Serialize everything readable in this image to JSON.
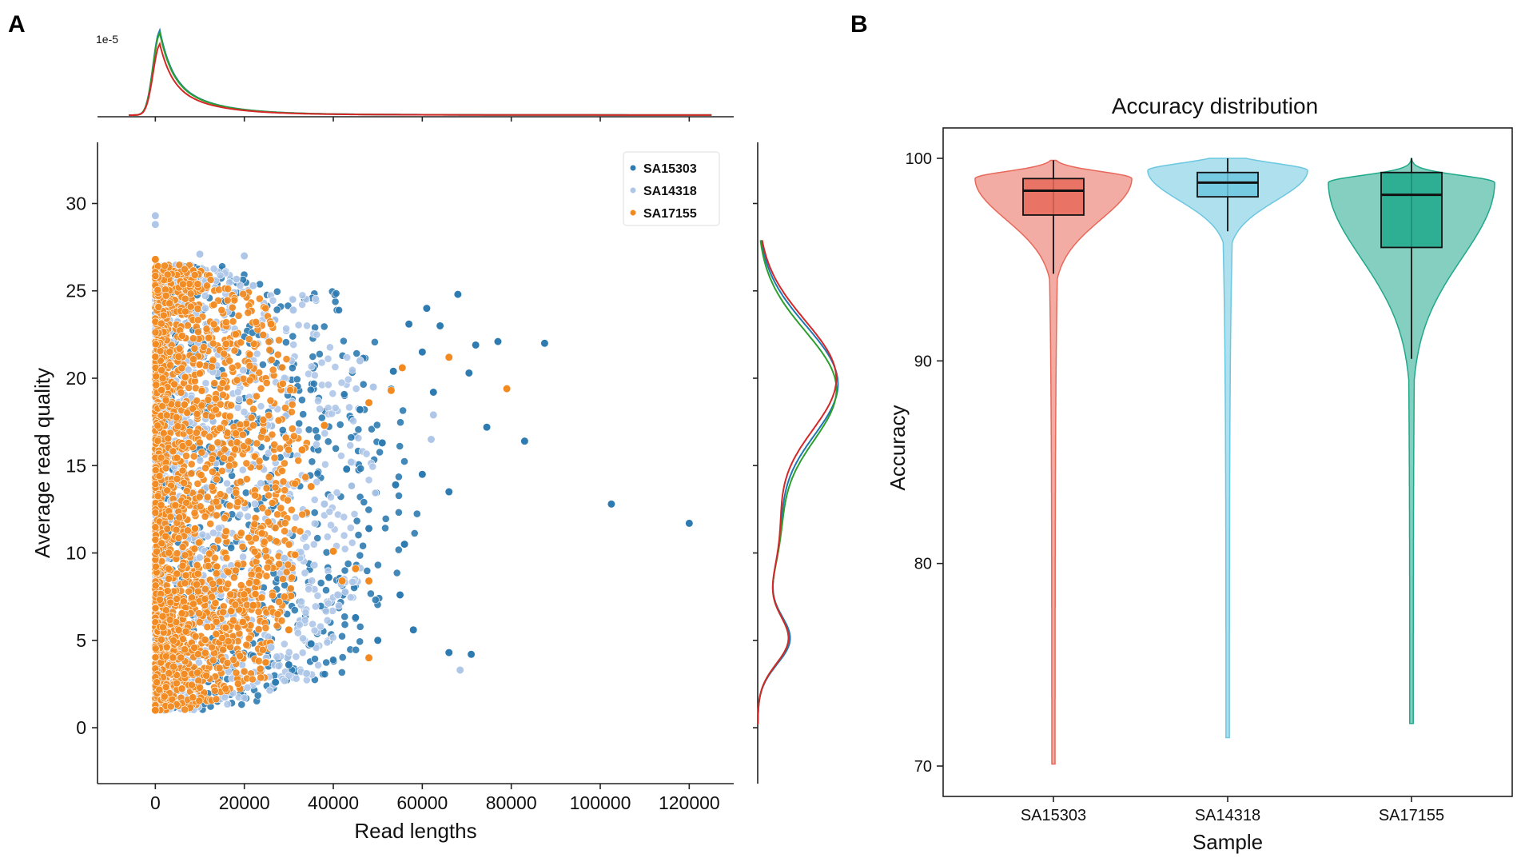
{
  "panel_labels": {
    "a": "A",
    "b": "B"
  },
  "colors": {
    "SA15303": "#2e7bb1",
    "SA14318": "#aec7e8",
    "SA17155": "#f28a1f",
    "kde_SA15303": "#1f77b4",
    "kde_SA14318": "#2ca02c",
    "kde_SA17155": "#d62728",
    "violin_SA15303": "#e8685a",
    "violin_SA14318": "#6cc7e0",
    "violin_SA17155": "#1fa88a"
  },
  "chart_data": [
    {
      "type": "scatter",
      "id": "scatter_read_quality",
      "xlabel": "Read lengths",
      "ylabel": "Average read quality",
      "xlim": [
        -13000,
        130000
      ],
      "ylim": [
        -3.2,
        33.5
      ],
      "xticks": [
        0,
        20000,
        40000,
        60000,
        80000,
        100000,
        120000
      ],
      "yticks": [
        0,
        5,
        10,
        15,
        20,
        25,
        30
      ],
      "legend": {
        "position": "top-right",
        "entries": [
          "SA15303",
          "SA14318",
          "SA17155"
        ]
      },
      "series": [
        {
          "name": "SA15303",
          "outliers": [
            [
              120000,
              11.7
            ],
            [
              102500,
              12.8
            ],
            [
              87500,
              22.0
            ],
            [
              83000,
              16.4
            ],
            [
              77000,
              22.1
            ],
            [
              74500,
              17.2
            ],
            [
              72000,
              21.9
            ],
            [
              70500,
              20.3
            ],
            [
              71000,
              4.2
            ],
            [
              68000,
              24.8
            ],
            [
              66000,
              13.5
            ],
            [
              66000,
              4.3
            ],
            [
              64000,
              23.0
            ],
            [
              62500,
              19.2
            ],
            [
              61000,
              24.0
            ],
            [
              60000,
              21.5
            ],
            [
              60000,
              14.5
            ],
            [
              58000,
              5.6
            ],
            [
              57000,
              23.1
            ],
            [
              56000,
              10.5
            ],
            [
              55000,
              7.6
            ],
            [
              54000,
              13.9
            ],
            [
              53500,
              20.4
            ],
            [
              51000,
              16.3
            ],
            [
              50000,
              5.0
            ],
            [
              48000,
              11.4
            ],
            [
              46000,
              18.2
            ],
            [
              45000,
              6.3
            ],
            [
              43000,
              14.8
            ],
            [
              39000,
              8.6
            ],
            [
              35000,
              4.8
            ],
            [
              30000,
              3.6
            ],
            [
              27000,
              2.6
            ]
          ]
        },
        {
          "name": "SA14318",
          "outliers": [
            [
              68500,
              3.3
            ],
            [
              62500,
              17.9
            ],
            [
              62000,
              16.5
            ],
            [
              49000,
              19.5
            ],
            [
              46000,
              21.0
            ],
            [
              44000,
              15.2
            ],
            [
              41000,
              7.6
            ],
            [
              38000,
              12.8
            ],
            [
              34000,
              3.1
            ],
            [
              31000,
              23.9
            ],
            [
              29000,
              9.7
            ],
            [
              26000,
              4.6
            ],
            [
              22000,
              25.3
            ],
            [
              20000,
              27.0
            ],
            [
              10000,
              27.1
            ],
            [
              0,
              29.3
            ],
            [
              0,
              28.8
            ]
          ]
        },
        {
          "name": "SA17155",
          "outliers": [
            [
              79000,
              19.4
            ],
            [
              66000,
              21.2
            ],
            [
              55500,
              20.6
            ],
            [
              53000,
              19.3
            ],
            [
              48000,
              18.6
            ],
            [
              48000,
              8.4
            ],
            [
              48000,
              4.0
            ],
            [
              45000,
              9.1
            ],
            [
              42000,
              8.4
            ],
            [
              40000,
              10.1
            ],
            [
              38000,
              17.3
            ],
            [
              35000,
              13.8
            ],
            [
              33000,
              15.9
            ],
            [
              30000,
              5.6
            ],
            [
              26000,
              23.1
            ],
            [
              22000,
              7.0
            ],
            [
              0,
              1.0
            ],
            [
              0,
              26.8
            ]
          ]
        }
      ]
    },
    {
      "type": "line",
      "id": "kde_read_lengths_top",
      "scale_label": "1e-5",
      "xlim": [
        -13000,
        130000
      ],
      "series": [
        {
          "name": "SA15303",
          "peak_x": 1000,
          "peak_height": 1.0
        },
        {
          "name": "SA14318",
          "peak_x": 1000,
          "peak_height": 0.97
        },
        {
          "name": "SA17155",
          "peak_x": 1000,
          "peak_height": 0.84
        }
      ]
    },
    {
      "type": "line",
      "id": "kde_quality_right",
      "ylim": [
        -3.2,
        33.5
      ],
      "series": [
        {
          "name": "SA15303",
          "peaks": [
            [
              5,
              0.37
            ],
            [
              19.7,
              1.0
            ]
          ]
        },
        {
          "name": "SA14318",
          "peaks": [
            [
              5,
              0.35
            ],
            [
              19.4,
              0.98
            ]
          ]
        },
        {
          "name": "SA17155",
          "peaks": [
            [
              5,
              0.35
            ],
            [
              20.0,
              0.98
            ]
          ]
        }
      ]
    },
    {
      "type": "violin",
      "id": "violin_accuracy",
      "title": "Accuracy distribution",
      "xlabel": "Sample",
      "ylabel": "Accuracy",
      "ylim": [
        68.5,
        101.5
      ],
      "yticks": [
        70,
        80,
        90,
        100
      ],
      "categories": [
        "SA15303",
        "SA14318",
        "SA17155"
      ],
      "boxes": [
        {
          "name": "SA15303",
          "min": 70.1,
          "q1": 97.2,
          "median": 98.4,
          "q3": 99.0,
          "max": 99.9,
          "whisker_low": 94.3,
          "whisker_high": 99.9
        },
        {
          "name": "SA14318",
          "min": 71.4,
          "q1": 98.1,
          "median": 98.8,
          "q3": 99.3,
          "max": 100.0,
          "whisker_low": 96.4,
          "whisker_high": 100.0
        },
        {
          "name": "SA17155",
          "min": 72.1,
          "q1": 95.6,
          "median": 98.2,
          "q3": 99.3,
          "max": 100.0,
          "whisker_low": 90.1,
          "whisker_high": 100.0
        }
      ]
    }
  ]
}
